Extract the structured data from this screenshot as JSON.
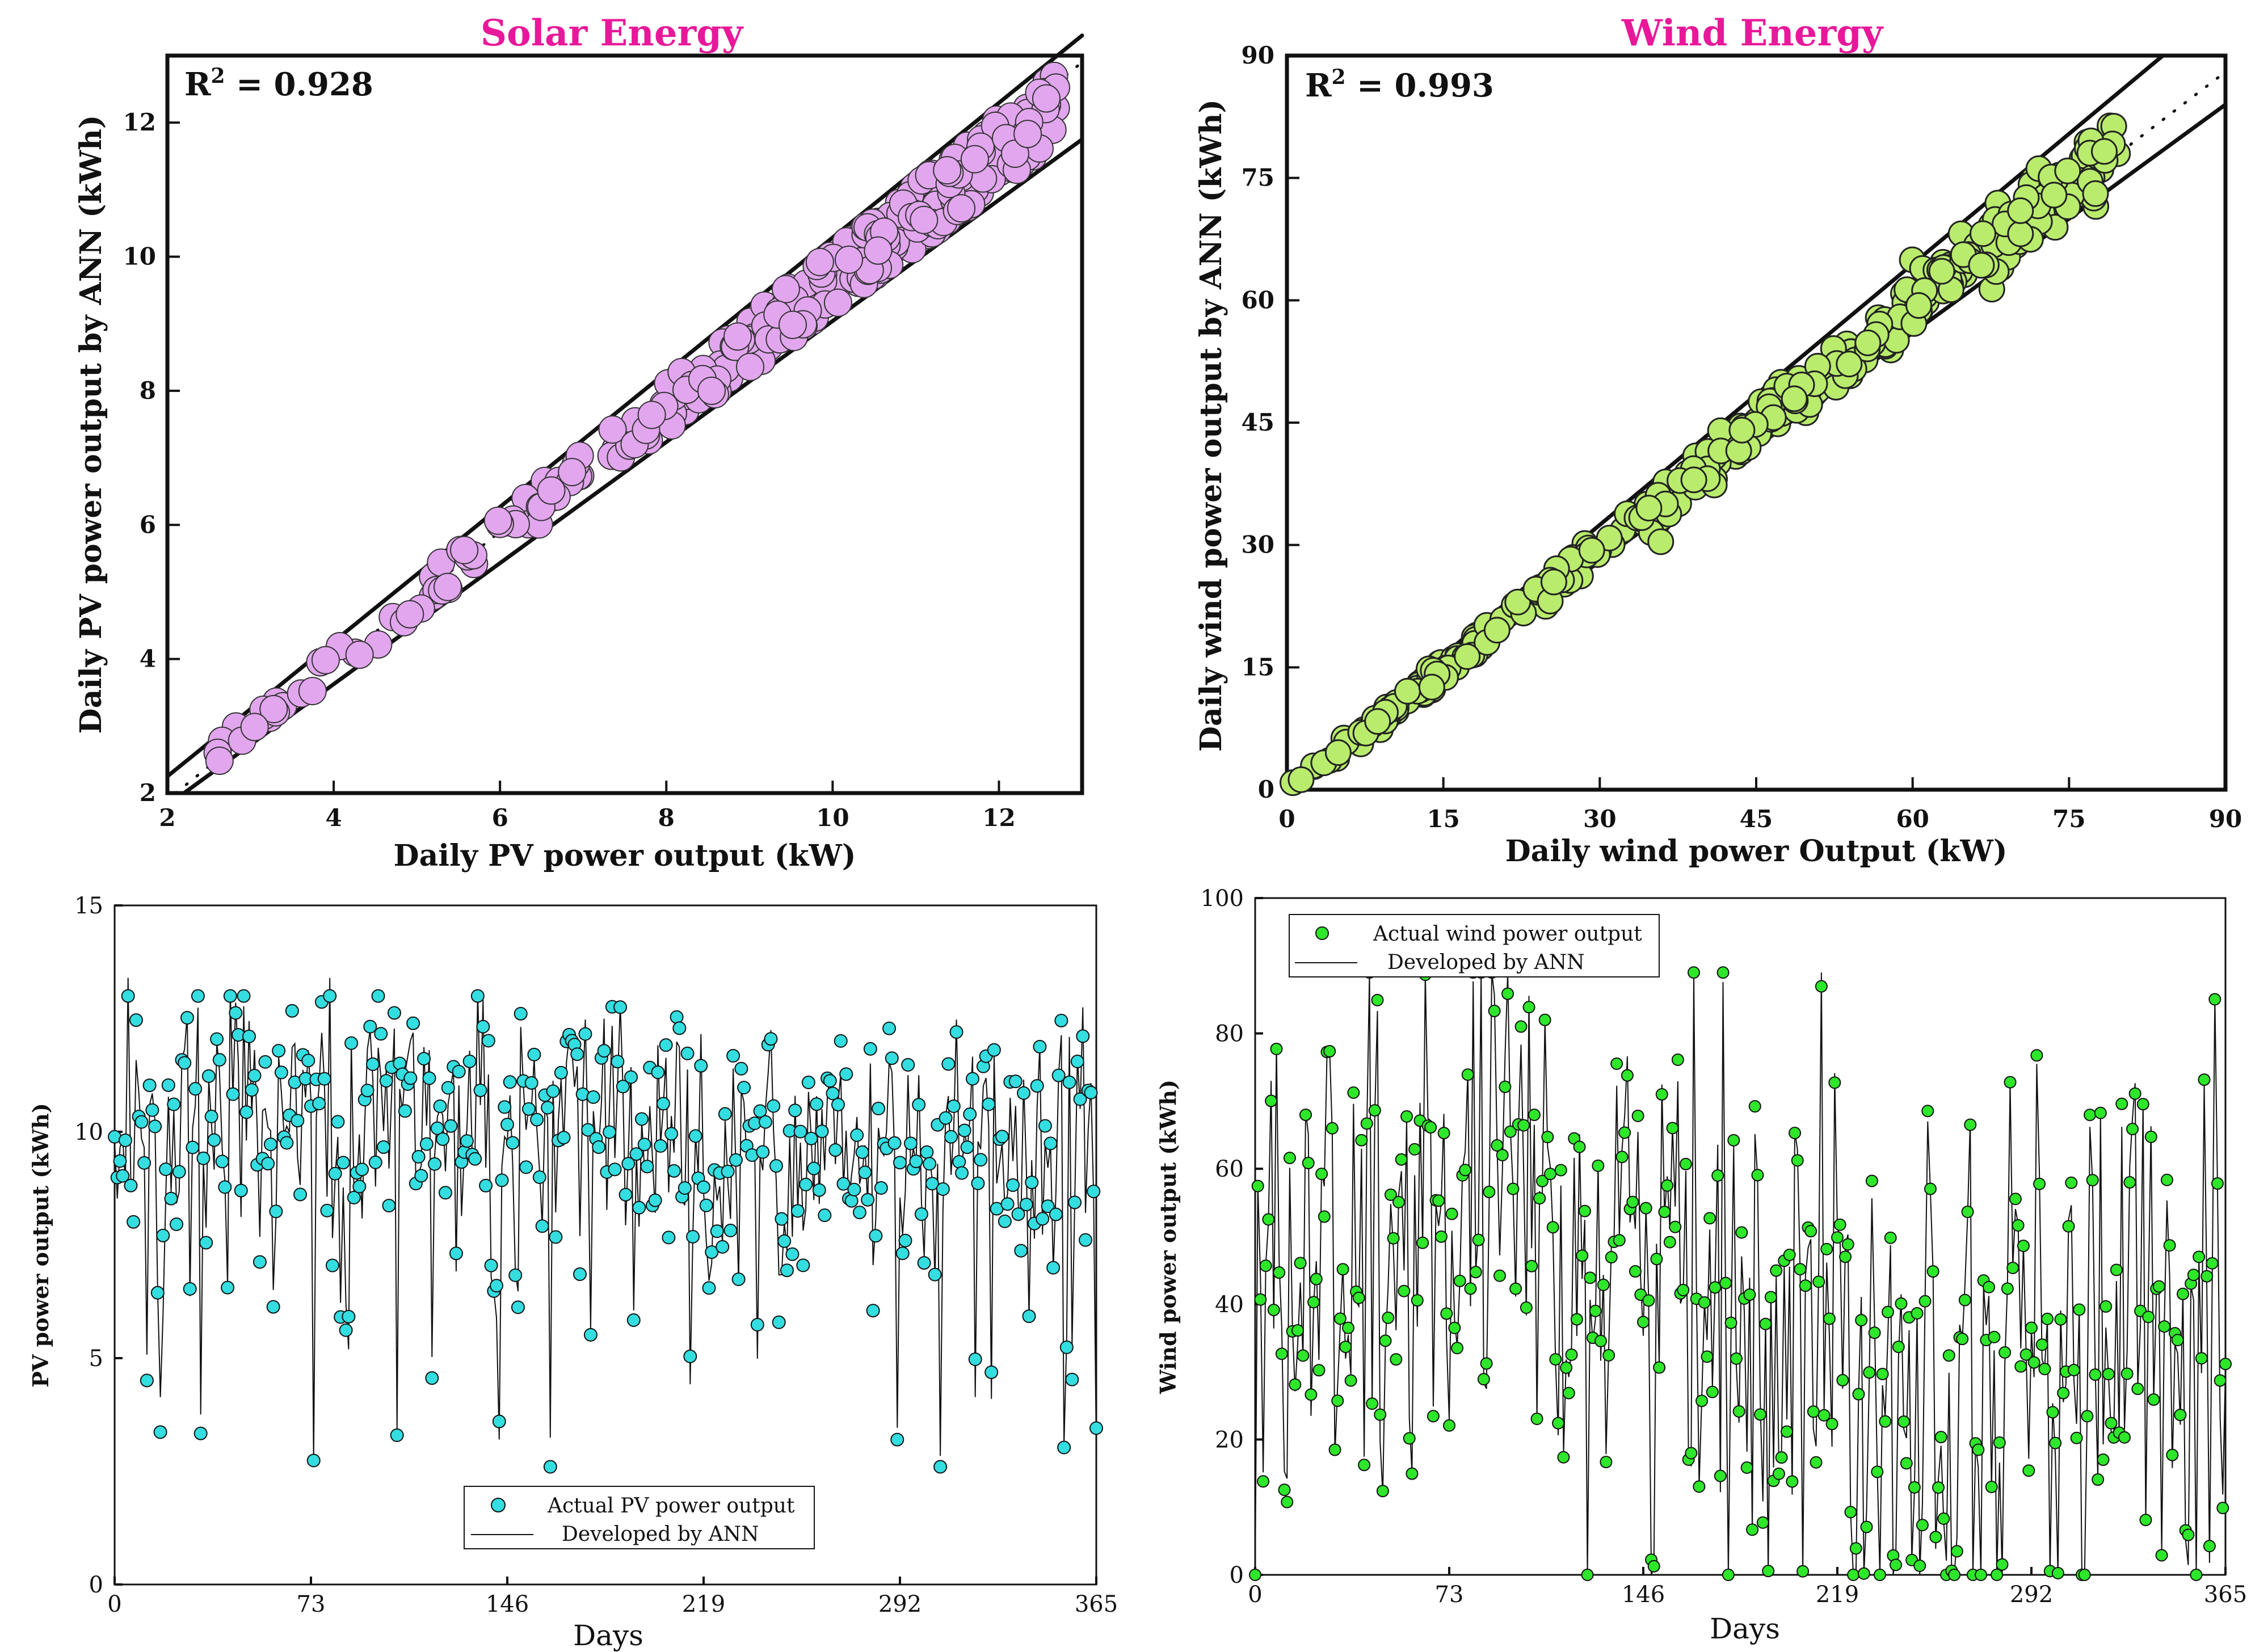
{
  "colors": {
    "title": "#e8189a",
    "solar_fill": "#e2a6ee",
    "wind_fill": "#b9ec6c",
    "pv_fill": "#33dde0",
    "windts_fill": "#2ee62a",
    "line": "#111111"
  },
  "chart_data": [
    {
      "id": "solar",
      "type": "scatter",
      "title": "Solar Energy",
      "xlabel": "Daily PV power output (kW)",
      "ylabel": "Daily PV power output by ANN (kWh)",
      "annotation_main": "R",
      "annotation_sup": "2",
      "annotation_rest": " = 0.928",
      "xlim": [
        2,
        13
      ],
      "ylim": [
        2,
        13
      ],
      "xticks": [
        2,
        4,
        6,
        8,
        10,
        12
      ],
      "yticks": [
        2,
        4,
        6,
        8,
        10,
        12
      ],
      "bounds": {
        "upper": [
          [
            2,
            2.25
          ],
          [
            13,
            13.3
          ]
        ],
        "lower": [
          [
            2.2,
            2
          ],
          [
            13,
            11.75
          ]
        ],
        "fit": [
          [
            2.1,
            2.0
          ],
          [
            13,
            12.9
          ]
        ]
      },
      "points_note": "approx. 365 daily points between x 2.6-12.7"
    },
    {
      "id": "wind",
      "type": "scatter",
      "title": "Wind Energy",
      "xlabel": "Daily wind power Output (kW)",
      "ylabel": "Daily wind power output by ANN (kWh)",
      "annotation_main": "R",
      "annotation_sup": "2",
      "annotation_rest": " = 0.993",
      "xlim": [
        0,
        90
      ],
      "ylim": [
        0,
        90
      ],
      "xticks": [
        0,
        15,
        30,
        45,
        60,
        75,
        90
      ],
      "yticks": [
        0,
        15,
        30,
        45,
        60,
        75,
        90
      ],
      "bounds": {
        "upper": [
          [
            0,
            0.5
          ],
          [
            84,
            90
          ]
        ],
        "lower": [
          [
            0,
            0
          ],
          [
            90,
            84
          ]
        ],
        "fit": [
          [
            0,
            0
          ],
          [
            90,
            88
          ]
        ]
      },
      "points_note": "approx. 365 daily points between 0-86"
    },
    {
      "id": "pv_ts",
      "type": "line",
      "xlabel": "Days",
      "ylabel": "PV power output (kWh)",
      "xlim": [
        0,
        365
      ],
      "ylim": [
        0,
        15
      ],
      "xticks": [
        0,
        73,
        146,
        219,
        292,
        365
      ],
      "yticks": [
        0,
        5,
        10,
        15
      ],
      "legend": [
        "Actual PV power output",
        "Developed by ANN"
      ],
      "series_note": "daily values 2.6-13.4 kWh over 365 days"
    },
    {
      "id": "wind_ts",
      "type": "line",
      "xlabel": "Days",
      "ylabel": "Wind power output (kWh)",
      "xlim": [
        0,
        365
      ],
      "ylim": [
        0,
        100
      ],
      "xticks": [
        0,
        73,
        146,
        219,
        292,
        365
      ],
      "yticks": [
        0,
        20,
        40,
        60,
        80,
        100
      ],
      "legend": [
        "Actual wind power output",
        "Developed by ANN"
      ],
      "series_note": "daily values 0-89 kWh over 365 days"
    }
  ]
}
